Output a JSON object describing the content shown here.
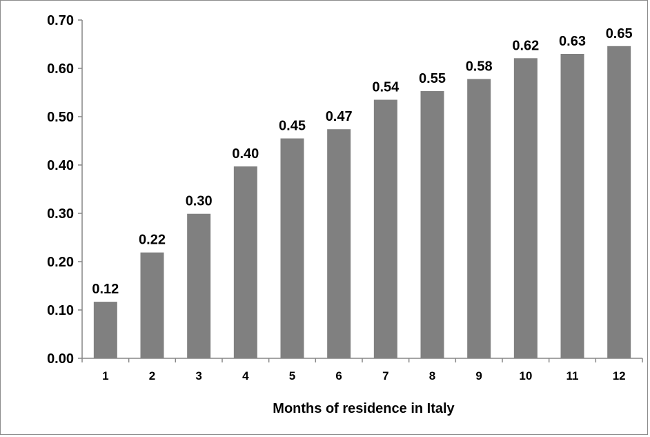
{
  "chart_data": {
    "type": "bar",
    "categories": [
      "1",
      "2",
      "3",
      "4",
      "5",
      "6",
      "7",
      "8",
      "9",
      "10",
      "11",
      "12"
    ],
    "values": [
      0.117,
      0.219,
      0.299,
      0.397,
      0.455,
      0.474,
      0.535,
      0.553,
      0.578,
      0.621,
      0.63,
      0.646
    ],
    "data_labels": [
      "0.12",
      "0.22",
      "0.30",
      "0.40",
      "0.45",
      "0.47",
      "0.54",
      "0.55",
      "0.58",
      "0.62",
      "0.63",
      "0.65"
    ],
    "y_tick_labels": [
      "0.00",
      "0.10",
      "0.20",
      "0.30",
      "0.40",
      "0.50",
      "0.60",
      "0.70"
    ],
    "xlabel": "Months of residence in Italy",
    "ylabel": "",
    "title": "",
    "ylim": [
      0,
      0.7
    ],
    "grid": false,
    "legend": "none",
    "bar_color": "#808080",
    "axis_color": "#868686"
  }
}
